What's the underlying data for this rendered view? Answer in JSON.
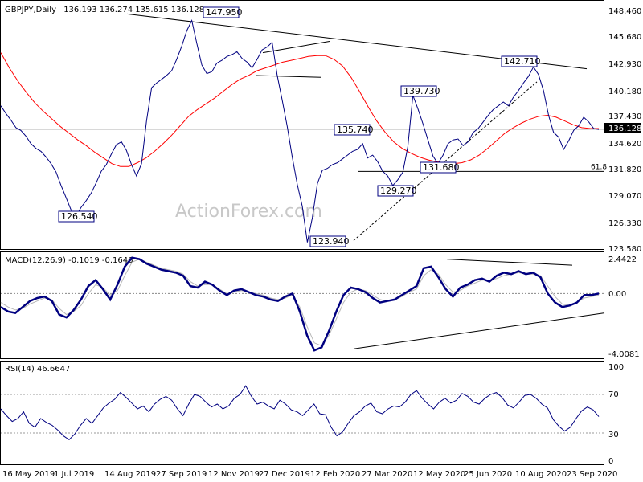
{
  "header": {
    "symbol": "GBPJPY,Daily",
    "ohlc": "136.193 136.274 135.615 136.128"
  },
  "watermark": "ActionForex.com",
  "chart_data": [
    {
      "type": "line",
      "name": "price",
      "title": "GBPJPY,Daily 136.193 136.274 135.615 136.128",
      "ylim": [
        123.58,
        149.42
      ],
      "y_ticks": [
        "148.460",
        "145.680",
        "142.930",
        "140.180",
        "137.430",
        "134.620",
        "131.820",
        "129.070",
        "126.330",
        "123.580"
      ],
      "last_price": "136.128",
      "colors": {
        "price": "#000080",
        "sma": "#ff0000",
        "trend": "#000000",
        "level_box": "#000080"
      },
      "series": [
        {
          "values": [
            138.6,
            137.8,
            137.1,
            136.3,
            136.0,
            135.4,
            134.6,
            134.1,
            133.8,
            133.2,
            132.5,
            131.6,
            130.2,
            128.9,
            127.6,
            127.0,
            127.9,
            128.6,
            129.4,
            130.5,
            131.7,
            132.4,
            133.5,
            134.5,
            134.8,
            133.9,
            132.4,
            131.2,
            132.5,
            137.0,
            140.5,
            141.0,
            141.4,
            141.8,
            142.3,
            143.5,
            144.9,
            146.5,
            147.6,
            145.2,
            142.9,
            142.0,
            142.2,
            143.1,
            143.4,
            143.8,
            144.0,
            144.3,
            143.6,
            143.2,
            142.6,
            143.5,
            144.5,
            144.8,
            145.3,
            141.8,
            139.2,
            136.4,
            133.2,
            130.3,
            128.0,
            124.2,
            126.8,
            130.4,
            131.8,
            132.0,
            132.4,
            132.6,
            133.0,
            133.4,
            133.8,
            134.0,
            134.6,
            133.1,
            133.4,
            132.7,
            131.7,
            131.2,
            130.2,
            130.8,
            131.6,
            134.3,
            139.7,
            138.3,
            136.7,
            135.0,
            133.3,
            132.5,
            133.4,
            134.6,
            135.0,
            135.1,
            134.4,
            134.8,
            135.8,
            136.2,
            136.9,
            137.6,
            138.2,
            138.6,
            139.0,
            138.6,
            139.5,
            140.2,
            141.0,
            141.7,
            142.7,
            141.9,
            140.2,
            137.6,
            135.8,
            135.3,
            134.0,
            134.9,
            136.0,
            136.5,
            137.4,
            136.9,
            136.2,
            136.1
          ]
        },
        {
          "values": [
            144.2,
            142.6,
            141.2,
            140.0,
            138.9,
            138.0,
            137.2,
            136.4,
            135.7,
            135.0,
            134.4,
            133.7,
            133.1,
            132.5,
            132.2,
            132.2,
            132.6,
            133.1,
            133.8,
            134.6,
            135.5,
            136.5,
            137.5,
            138.2,
            138.8,
            139.4,
            140.1,
            140.8,
            141.4,
            141.8,
            142.3,
            142.6,
            142.9,
            143.2,
            143.4,
            143.6,
            143.8,
            143.9,
            143.9,
            143.5,
            142.8,
            141.6,
            140.1,
            138.5,
            137.0,
            135.8,
            134.8,
            134.1,
            133.6,
            133.2,
            132.9,
            132.7,
            132.6,
            132.5,
            132.6,
            132.9,
            133.4,
            134.1,
            134.9,
            135.7,
            136.3,
            136.8,
            137.2,
            137.5,
            137.6,
            137.4,
            137.0,
            136.6,
            136.3,
            136.2,
            136.2
          ]
        },
        {
          "values": [
            147.95,
            142.5
          ]
        },
        {
          "values": [
            124.4,
            139.6
          ]
        },
        {
          "values": [
            131.68,
            131.68
          ]
        }
      ],
      "annotations": [
        {
          "label": "147.950",
          "y": 147.95
        },
        {
          "label": "142.710",
          "y": 142.71
        },
        {
          "label": "139.730",
          "y": 139.73
        },
        {
          "label": "135.740",
          "y": 135.74
        },
        {
          "label": "131.680",
          "y": 131.68
        },
        {
          "label": "129.270",
          "y": 129.27
        },
        {
          "label": "126.540",
          "y": 126.54
        },
        {
          "label": "123.940",
          "y": 123.94
        }
      ],
      "level_label": "61.8"
    },
    {
      "type": "line",
      "name": "macd",
      "title": "MACD(12,26,9) -0.1019 -0.1646",
      "ylim": [
        -4.0081,
        2.4422
      ],
      "y_ticks": [
        "2.4422",
        "0.00",
        "-4.0081"
      ],
      "series": [
        {
          "values": [
            -0.9,
            -1.2,
            -1.3,
            -0.9,
            -0.5,
            -0.3,
            -0.2,
            -0.5,
            -1.4,
            -1.6,
            -1.1,
            -0.4,
            0.5,
            0.9,
            0.3,
            -0.4,
            0.6,
            1.8,
            2.4,
            2.3,
            2.0,
            1.8,
            1.6,
            1.5,
            1.4,
            1.2,
            0.5,
            0.4,
            0.8,
            0.6,
            0.2,
            -0.1,
            0.2,
            0.3,
            0.1,
            -0.1,
            -0.2,
            -0.4,
            -0.5,
            -0.2,
            0.0,
            -1.2,
            -2.8,
            -3.8,
            -3.6,
            -2.5,
            -1.2,
            -0.1,
            0.4,
            0.3,
            0.1,
            -0.3,
            -0.6,
            -0.5,
            -0.4,
            -0.1,
            0.2,
            0.5,
            1.7,
            1.8,
            1.1,
            0.3,
            -0.2,
            0.4,
            0.6,
            0.9,
            1.0,
            0.8,
            1.2,
            1.4,
            1.3,
            1.5,
            1.3,
            1.4,
            1.1,
            0.0,
            -0.6,
            -0.9,
            -0.8,
            -0.6,
            -0.1,
            -0.1,
            0.0
          ]
        },
        {
          "values": [
            -0.6,
            -0.9,
            -1.1,
            -1.0,
            -0.7,
            -0.5,
            -0.3,
            -0.4,
            -1.0,
            -1.4,
            -1.2,
            -0.8,
            0.0,
            0.6,
            0.4,
            -0.1,
            0.2,
            1.2,
            2.1,
            2.3,
            2.1,
            1.9,
            1.7,
            1.6,
            1.5,
            1.3,
            0.8,
            0.5,
            0.6,
            0.6,
            0.3,
            0.0,
            0.1,
            0.2,
            0.1,
            0.0,
            -0.1,
            -0.3,
            -0.4,
            -0.3,
            -0.1,
            -0.9,
            -2.2,
            -3.3,
            -3.5,
            -2.8,
            -1.7,
            -0.6,
            0.1,
            0.3,
            0.2,
            -0.1,
            -0.4,
            -0.5,
            -0.4,
            -0.2,
            0.1,
            0.3,
            1.2,
            1.6,
            1.3,
            0.6,
            0.1,
            0.2,
            0.5,
            0.7,
            0.9,
            0.9,
            1.0,
            1.2,
            1.3,
            1.4,
            1.3,
            1.3,
            1.2,
            0.5,
            -0.2,
            -0.7,
            -0.8,
            -0.6,
            -0.3,
            -0.2,
            -0.1
          ]
        },
        {
          "values": [
            -3.7,
            -1.3
          ]
        },
        {
          "values": [
            2.3,
            1.9
          ]
        }
      ]
    },
    {
      "type": "line",
      "name": "rsi",
      "title": "RSI(14) 46.6647",
      "ylim": [
        0,
        100
      ],
      "y_ticks": [
        "100",
        "70",
        "30",
        "0"
      ],
      "series": [
        {
          "values": [
            55,
            48,
            42,
            45,
            52,
            40,
            36,
            45,
            41,
            38,
            33,
            27,
            23,
            29,
            38,
            45,
            40,
            48,
            56,
            61,
            65,
            72,
            67,
            61,
            55,
            58,
            52,
            60,
            65,
            68,
            64,
            55,
            48,
            60,
            70,
            68,
            62,
            57,
            60,
            55,
            58,
            66,
            70,
            79,
            68,
            60,
            62,
            58,
            55,
            64,
            60,
            54,
            52,
            48,
            54,
            60,
            50,
            49,
            36,
            27,
            31,
            40,
            48,
            52,
            58,
            61,
            52,
            50,
            55,
            58,
            57,
            62,
            70,
            74,
            66,
            60,
            55,
            62,
            66,
            61,
            64,
            71,
            68,
            62,
            60,
            66,
            70,
            72,
            67,
            59,
            56,
            62,
            69,
            70,
            66,
            60,
            56,
            44,
            37,
            32,
            36,
            45,
            53,
            57,
            54,
            47
          ]
        }
      ],
      "levels": [
        70,
        30
      ]
    }
  ],
  "x_axis": {
    "labels": [
      "16 May 2019",
      "1 Jul 2019",
      "14 Aug 2019",
      "27 Sep 2019",
      "12 Nov 2019",
      "27 Dec 2019",
      "12 Feb 2020",
      "27 Mar 2020",
      "12 May 2020",
      "25 Jun 2020",
      "10 Aug 2020",
      "23 Sep 2020"
    ]
  }
}
